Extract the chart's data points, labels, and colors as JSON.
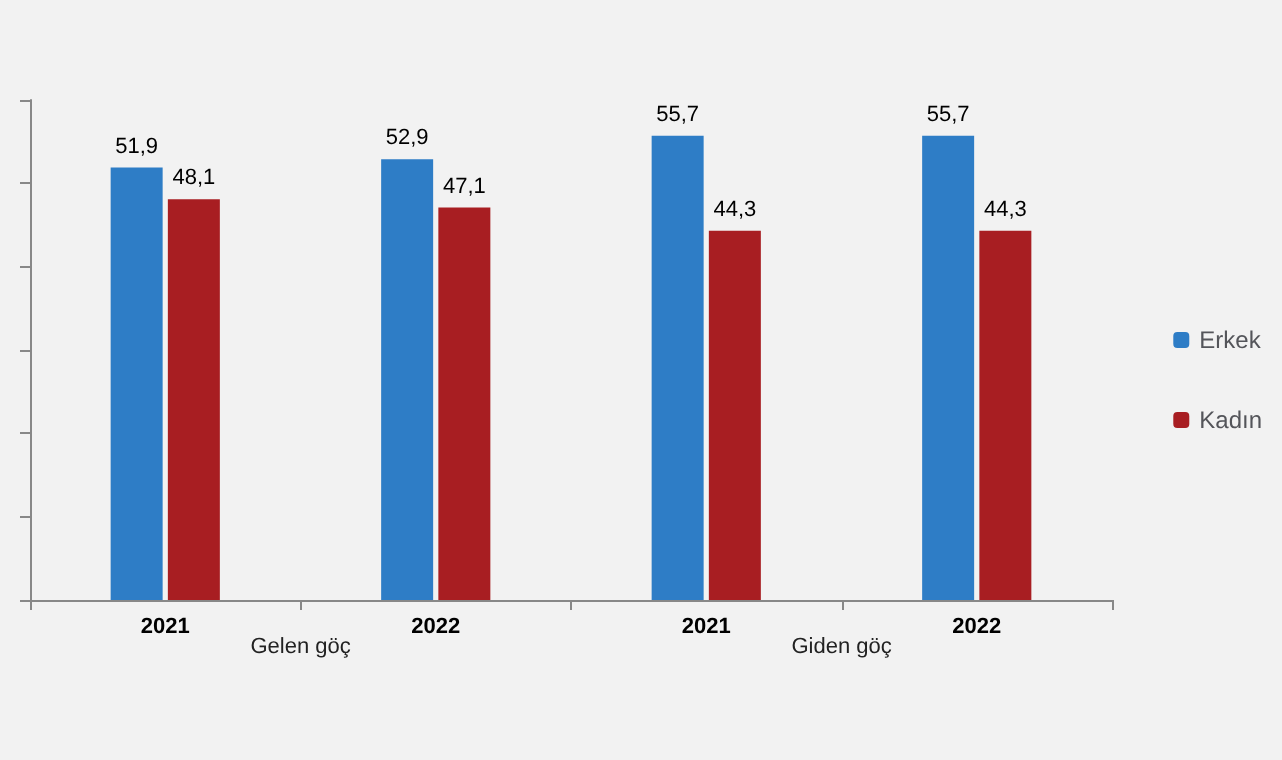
{
  "chart_data": {
    "type": "bar",
    "categories": [
      "2021",
      "2022",
      "2021",
      "2022"
    ],
    "series": [
      {
        "name": "Erkek",
        "color": "#2e7dc6",
        "values": [
          51.9,
          52.9,
          55.7,
          55.7
        ],
        "value_labels": [
          "51,9",
          "52,9",
          "55,7",
          "55,7"
        ]
      },
      {
        "name": "Kadın",
        "color": "#a81e22",
        "values": [
          48.1,
          47.1,
          44.3,
          44.3
        ],
        "value_labels": [
          "48,1",
          "47,1",
          "44,3",
          "44,3"
        ]
      }
    ],
    "annotations": [
      "Gelen göç",
      "Giden göç"
    ],
    "legend": "right",
    "grid": false,
    "tick_labels": "x"
  }
}
